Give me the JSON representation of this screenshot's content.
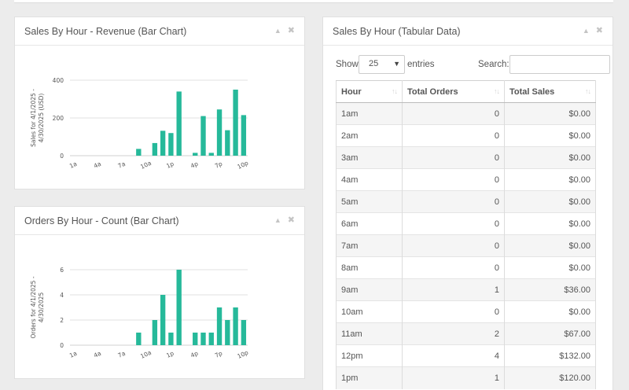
{
  "panels": {
    "revenue": {
      "title": "Sales By Hour - Revenue (Bar Chart)"
    },
    "orders": {
      "title": "Orders By Hour - Count (Bar Chart)"
    },
    "table": {
      "title": "Sales By Hour (Tabular Data)"
    }
  },
  "controls": {
    "collapse_glyph": "▲",
    "close_glyph": "✖"
  },
  "datatable": {
    "show_label": "Show",
    "page_size": "25",
    "entries_label": "entries",
    "search_label": "Search:",
    "search_value": "",
    "sort_glyph": "↑↓",
    "columns": [
      "Hour",
      "Total Orders",
      "Total Sales"
    ],
    "rows": [
      [
        "1am",
        "0",
        "$0.00"
      ],
      [
        "2am",
        "0",
        "$0.00"
      ],
      [
        "3am",
        "0",
        "$0.00"
      ],
      [
        "4am",
        "0",
        "$0.00"
      ],
      [
        "5am",
        "0",
        "$0.00"
      ],
      [
        "6am",
        "0",
        "$0.00"
      ],
      [
        "7am",
        "0",
        "$0.00"
      ],
      [
        "8am",
        "0",
        "$0.00"
      ],
      [
        "9am",
        "1",
        "$36.00"
      ],
      [
        "10am",
        "0",
        "$0.00"
      ],
      [
        "11am",
        "2",
        "$67.00"
      ],
      [
        "12pm",
        "4",
        "$132.00"
      ],
      [
        "1pm",
        "1",
        "$120.00"
      ]
    ]
  },
  "chart_data": [
    {
      "type": "bar",
      "ylabel": "Sales for 4/1/2025 - 4/30/2025 (USD)",
      "ylim": [
        0,
        400
      ],
      "yticks": [
        0,
        200,
        400
      ],
      "grid": true,
      "xticks": [
        "1a",
        "4a",
        "7a",
        "10a",
        "1p",
        "4p",
        "7p",
        "10p"
      ],
      "values": [
        0,
        0,
        0,
        0,
        0,
        0,
        0,
        0,
        36,
        0,
        67,
        132,
        120,
        340,
        0,
        15,
        210,
        15,
        245,
        135,
        350,
        215
      ],
      "color": "#26b99a"
    },
    {
      "type": "bar",
      "ylabel": "Orders for 4/1/2025 - 4/30/2025",
      "ylim": [
        0,
        6
      ],
      "yticks": [
        0,
        2,
        4,
        6
      ],
      "grid": true,
      "xticks": [
        "1a",
        "4a",
        "7a",
        "10a",
        "1p",
        "4p",
        "7p",
        "10p"
      ],
      "values": [
        0,
        0,
        0,
        0,
        0,
        0,
        0,
        0,
        1,
        0,
        2,
        4,
        1,
        6,
        0,
        1,
        1,
        1,
        3,
        2,
        3,
        2
      ],
      "color": "#26b99a"
    }
  ]
}
